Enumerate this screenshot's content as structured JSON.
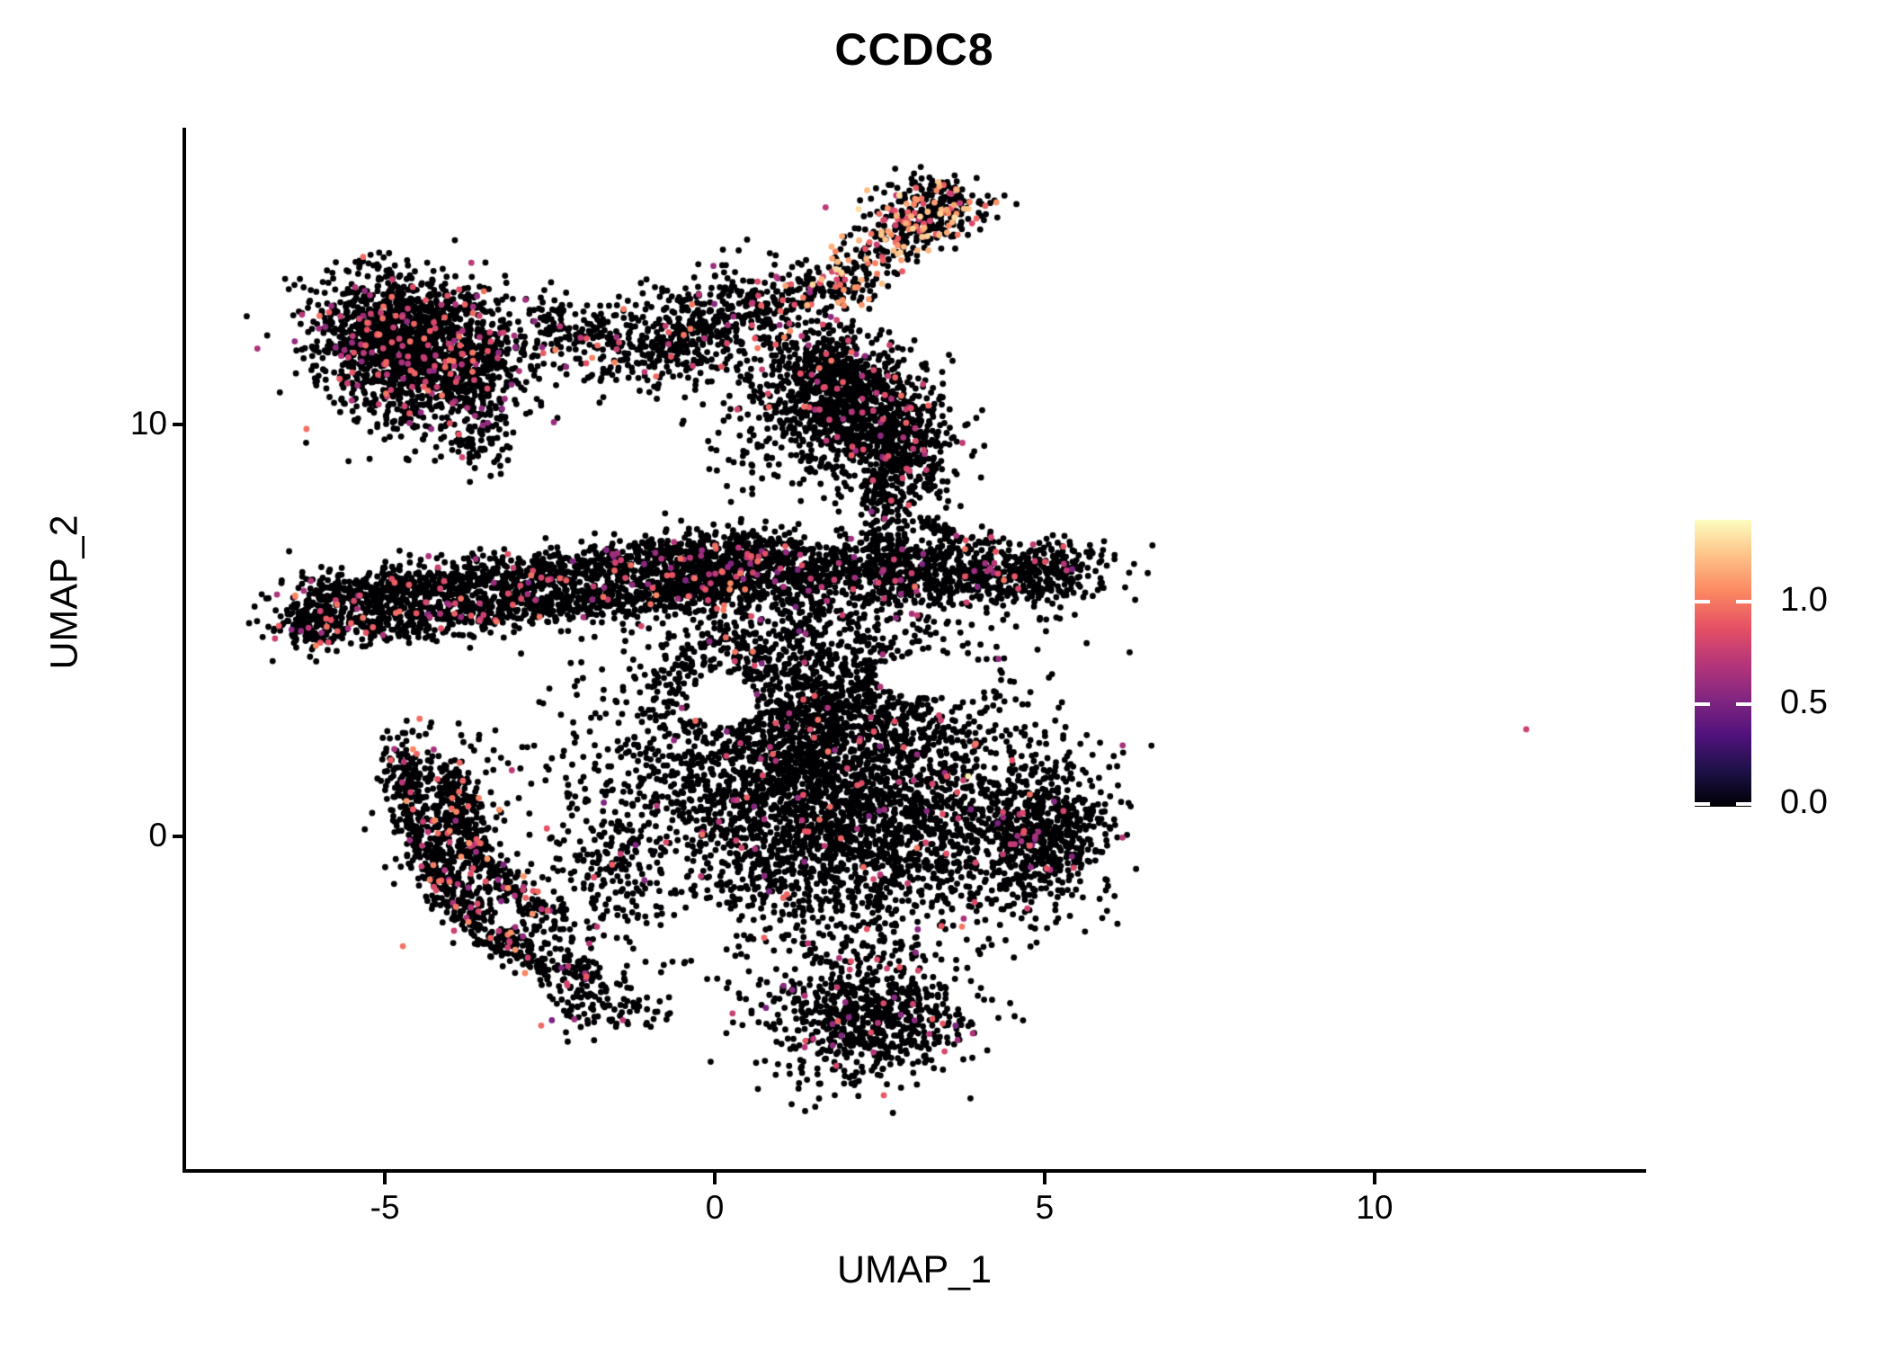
{
  "title": "CCDC8",
  "axes": {
    "xlabel": "UMAP_1",
    "ylabel": "UMAP_2",
    "x_ticks": [
      {
        "value": -5,
        "label": "-5"
      },
      {
        "value": 0,
        "label": "0"
      },
      {
        "value": 5,
        "label": "5"
      },
      {
        "value": 10,
        "label": "10"
      }
    ],
    "y_ticks": [
      {
        "value": 0,
        "label": "0"
      },
      {
        "value": 10,
        "label": "10"
      }
    ]
  },
  "legend": {
    "ticks": [
      {
        "value": 0.0,
        "label": "0.0"
      },
      {
        "value": 0.5,
        "label": "0.5"
      },
      {
        "value": 1.0,
        "label": "1.0"
      }
    ],
    "value_max": 1.4
  },
  "chart_data": {
    "type": "scatter",
    "title": "CCDC8",
    "xlabel": "UMAP_1",
    "ylabel": "UMAP_2",
    "xlim": [
      -8.04,
      14.09
    ],
    "ylim": [
      -8.12,
      17.2
    ],
    "grid": false,
    "legend_position": "right",
    "background": "#FFFFFF",
    "point_radius_px": 3.4,
    "value_max": 1.4,
    "zero_color": "#000004",
    "colormap": "magma",
    "color_stops": [
      "#000004",
      "#1D1147",
      "#51127C",
      "#822681",
      "#B63679",
      "#E65164",
      "#FB8861",
      "#FEC287",
      "#FCFDBF"
    ],
    "clusters": [
      {
        "type": "gauss",
        "cx": -4.9,
        "cy": 12.3,
        "sx": 0.65,
        "sy": 0.75,
        "n": 950,
        "frac": 0.09,
        "crange": [
          0.55,
          1.0
        ]
      },
      {
        "type": "gauss",
        "cx": -4.15,
        "cy": 11.4,
        "sx": 0.75,
        "sy": 0.85,
        "n": 950,
        "frac": 0.09,
        "crange": [
          0.55,
          1.0
        ]
      },
      {
        "type": "gauss",
        "cx": -3.6,
        "cy": 9.6,
        "sx": 0.3,
        "sy": 0.45,
        "n": 70,
        "frac": 0.06,
        "crange": [
          0.55,
          1.0
        ]
      },
      {
        "type": "gauss",
        "cx": -2.15,
        "cy": 12.4,
        "sx": 0.5,
        "sy": 0.45,
        "n": 120,
        "frac": 0.05,
        "crange": [
          0.55,
          1.0
        ]
      },
      {
        "type": "line",
        "x1": -1.45,
        "y1": 11.6,
        "x2": 1.1,
        "y2": 13.1,
        "sd": 0.55,
        "n": 620,
        "frac": 0.07,
        "crange": [
          0.55,
          1.05
        ]
      },
      {
        "type": "line",
        "x1": 1.35,
        "y1": 12.9,
        "x2": 3.55,
        "y2": 15.35,
        "sd": 0.3,
        "n": 300,
        "frac": 0.3,
        "crange": [
          0.75,
          1.3
        ]
      },
      {
        "type": "gauss",
        "cx": 3.3,
        "cy": 15.2,
        "sx": 0.45,
        "sy": 0.4,
        "n": 240,
        "frac": 0.22,
        "crange": [
          0.7,
          1.3
        ]
      },
      {
        "type": "gauss",
        "cx": 2.15,
        "cy": 10.2,
        "sx": 0.6,
        "sy": 0.75,
        "n": 850,
        "frac": 0.05,
        "crange": [
          0.55,
          1.0
        ]
      },
      {
        "type": "gauss",
        "cx": 1.7,
        "cy": 11.4,
        "sx": 0.45,
        "sy": 0.5,
        "n": 280,
        "frac": 0.06,
        "crange": [
          0.55,
          1.0
        ]
      },
      {
        "type": "gauss",
        "cx": 2.9,
        "cy": 9.3,
        "sx": 0.4,
        "sy": 0.65,
        "n": 300,
        "frac": 0.05,
        "crange": [
          0.55,
          1.0
        ]
      },
      {
        "type": "line",
        "x1": 2.5,
        "y1": 8.6,
        "x2": 2.62,
        "y2": 6.5,
        "sd": 0.22,
        "n": 150,
        "frac": 0.04,
        "crange": [
          0.55,
          1.0
        ]
      },
      {
        "type": "line",
        "x1": 3.1,
        "y1": 7.7,
        "x2": 3.8,
        "y2": 7.15,
        "sd": 0.07,
        "n": 45,
        "frac": 0.0,
        "crange": [
          0.55,
          1.0
        ]
      },
      {
        "type": "gauss",
        "cx": 0.7,
        "cy": 9.7,
        "sx": 0.45,
        "sy": 1.2,
        "n": 120,
        "frac": 0.04,
        "crange": [
          0.55,
          1.0
        ]
      },
      {
        "type": "line",
        "x1": -5.9,
        "y1": 5.85,
        "x2": 0.85,
        "y2": 7.0,
        "sd": 0.27,
        "n": 1150,
        "frac": 0.06,
        "crange": [
          0.5,
          1.05
        ]
      },
      {
        "type": "gauss",
        "cx": -6.1,
        "cy": 5.5,
        "sx": 0.3,
        "sy": 0.4,
        "n": 140,
        "frac": 0.06,
        "crange": [
          0.5,
          1.05
        ]
      },
      {
        "type": "line",
        "x1": -6.4,
        "y1": 4.95,
        "x2": 0.4,
        "y2": 6.1,
        "sd": 0.26,
        "n": 950,
        "frac": 0.06,
        "crange": [
          0.5,
          1.05
        ]
      },
      {
        "type": "line",
        "x1": -0.6,
        "y1": 6.35,
        "x2": 5.55,
        "y2": 6.45,
        "sd": 0.42,
        "n": 1500,
        "frac": 0.05,
        "crange": [
          0.5,
          1.0
        ]
      },
      {
        "type": "gauss",
        "cx": 1.3,
        "cy": 3.2,
        "sx": 1.35,
        "sy": 1.5,
        "n": 2100,
        "frac": 0.032,
        "crange": [
          0.5,
          1.0
        ]
      },
      {
        "type": "gauss",
        "cx": 2.0,
        "cy": 0.3,
        "sx": 1.5,
        "sy": 1.5,
        "n": 2400,
        "frac": 0.032,
        "crange": [
          0.5,
          1.0
        ]
      },
      {
        "type": "gauss",
        "cx": 4.9,
        "cy": 0.1,
        "sx": 0.55,
        "sy": 0.85,
        "n": 620,
        "frac": 0.04,
        "crange": [
          0.5,
          0.95
        ]
      },
      {
        "type": "gauss",
        "cx": 2.3,
        "cy": -4.4,
        "sx": 0.75,
        "sy": 0.75,
        "n": 750,
        "frac": 0.035,
        "crange": [
          0.5,
          0.95
        ]
      },
      {
        "type": "arc",
        "cx": -1.1,
        "cy": 1.8,
        "rx": 3.6,
        "ry": 5.3,
        "t1": 0.97,
        "t2": 1.44,
        "sd": 0.17,
        "n": 620,
        "frac": 0.09,
        "crange": [
          0.5,
          1.1
        ]
      },
      {
        "type": "arc",
        "cx": -1.15,
        "cy": 1.9,
        "rx": 2.95,
        "ry": 4.3,
        "t1": 1.02,
        "t2": 1.38,
        "sd": 0.15,
        "n": 330,
        "frac": 0.08,
        "crange": [
          0.5,
          1.1
        ]
      },
      {
        "type": "gauss",
        "cx": -3.9,
        "cy": 0.3,
        "sx": 0.45,
        "sy": 1.0,
        "n": 260,
        "frac": 0.07,
        "crange": [
          0.5,
          1.1
        ]
      },
      {
        "type": "gauss",
        "cx": -1.6,
        "cy": -0.6,
        "sx": 0.55,
        "sy": 1.4,
        "n": 240,
        "frac": 0.05,
        "crange": [
          0.5,
          1.0
        ]
      },
      {
        "type": "gauss",
        "cx": -1.6,
        "cy": -4.2,
        "sx": 0.45,
        "sy": 0.35,
        "n": 90,
        "frac": 0.06,
        "crange": [
          0.5,
          1.0
        ]
      }
    ],
    "voids": [
      {
        "x": 3.3,
        "y": 3.9,
        "rx": 0.85,
        "ry": 0.55
      },
      {
        "x": 0.1,
        "y": 3.3,
        "rx": 0.5,
        "ry": 0.65
      },
      {
        "x": -0.15,
        "y": -2.2,
        "rx": 0.45,
        "ry": 0.6
      }
    ],
    "special_points": [
      {
        "x": 12.3,
        "y": 2.6,
        "value": 0.78
      },
      {
        "x": 3.84,
        "y": 1.46,
        "value": 1.35
      }
    ]
  }
}
